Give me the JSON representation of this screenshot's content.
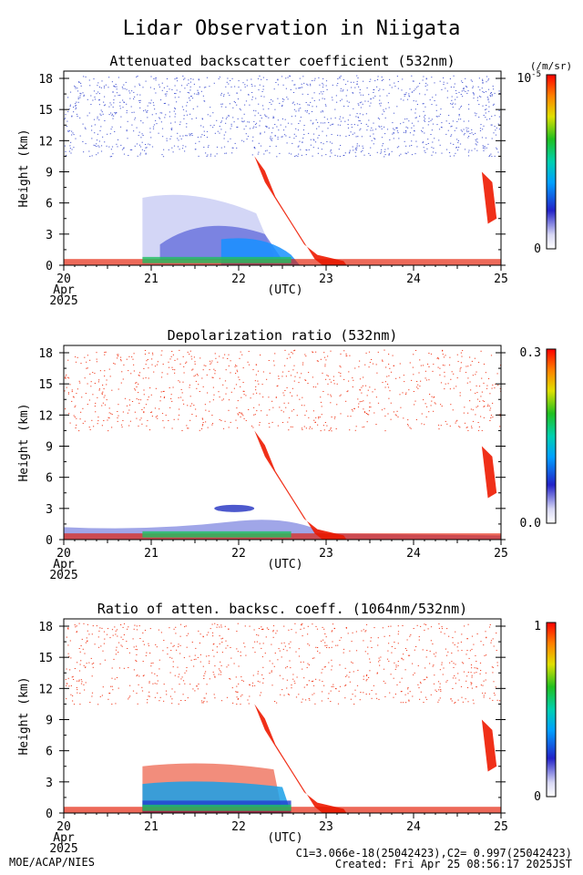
{
  "title": "Lidar Observation in Niigata",
  "x_axis": {
    "ticks": [
      "20",
      "21",
      "22",
      "23",
      "24",
      "25"
    ],
    "month": "Apr",
    "year": "2025",
    "label": "(UTC)"
  },
  "chart_data": [
    {
      "type": "heatmap",
      "title": "Attenuated backscatter coefficient (532nm)",
      "ylabel": "Height (km)",
      "ylim": [
        0,
        18
      ],
      "yticks": [
        "0",
        "3",
        "6",
        "9",
        "12",
        "15",
        "18"
      ],
      "xlim": [
        "2025-04-20",
        "2025-04-25"
      ],
      "colorbar": {
        "unit": "(/m/sr)",
        "min_label": "0",
        "max_label": "10-5",
        "max_base": "10",
        "max_exp": "-5"
      }
    },
    {
      "type": "heatmap",
      "title": "Depolarization ratio (532nm)",
      "ylabel": "Height (km)",
      "ylim": [
        0,
        18
      ],
      "yticks": [
        "0",
        "3",
        "6",
        "9",
        "12",
        "15",
        "18"
      ],
      "xlim": [
        "2025-04-20",
        "2025-04-25"
      ],
      "colorbar": {
        "min_label": "0.0",
        "max_label": "0.3"
      }
    },
    {
      "type": "heatmap",
      "title": "Ratio of atten. backsc. coeff. (1064nm/532nm)",
      "ylabel": "Height (km)",
      "ylim": [
        0,
        18
      ],
      "yticks": [
        "0",
        "3",
        "6",
        "9",
        "12",
        "15",
        "18"
      ],
      "xlim": [
        "2025-04-20",
        "2025-04-25"
      ],
      "colorbar": {
        "min_label": "0",
        "max_label": "1"
      }
    }
  ],
  "footer": {
    "org": "MOE/ACAP/NIES",
    "calib": "C1=3.066e-18(25042423),C2= 0.997(25042423)",
    "created": "Created: Fri Apr 25 08:56:17 2025JST"
  }
}
